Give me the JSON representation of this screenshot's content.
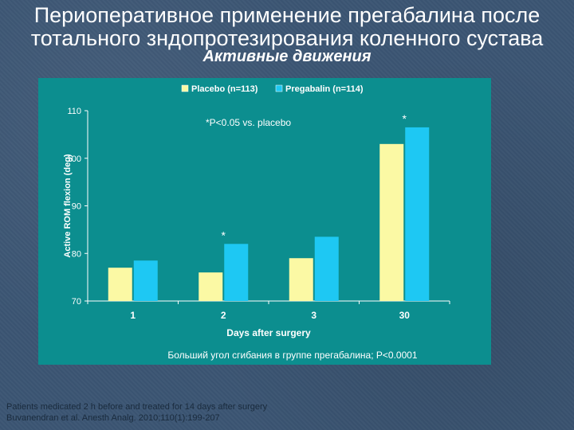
{
  "slide": {
    "title_line1": "Периоперативное применение прегабалина после",
    "title_line2": "тотального зндопротезирования коленного сустава",
    "subtitle": "Активные движения",
    "footnote_line1": "Patients medicated 2 h before and treated for 14 days after surgery",
    "footnote_line2": "Buvanendran et al. Anesth Analg. 2010;110(1):199-207"
  },
  "chart_data": {
    "type": "bar",
    "categories": [
      "1",
      "2",
      "3",
      "30"
    ],
    "series": [
      {
        "name": "Placebo (n=113)",
        "color": "#fbf9a4",
        "values": [
          77,
          76,
          79,
          103
        ]
      },
      {
        "name": "Pregabalin (n=114)",
        "color": "#1ec8f3",
        "values": [
          78.5,
          82,
          83.5,
          106.5
        ]
      }
    ],
    "xlabel": "Days after surgery",
    "ylabel": "Active ROM flexion (deg)",
    "ylim": [
      70,
      110
    ],
    "yticks": [
      70,
      80,
      90,
      100,
      110
    ],
    "significance_marks": [
      {
        "category": "2",
        "label": "*"
      },
      {
        "category": "30",
        "label": "*"
      }
    ],
    "annotation": "*P<0.05 vs. placebo",
    "caption": "Больший угол сгибания в группе прегабалина; P<0.0001",
    "legend_position": "top"
  }
}
